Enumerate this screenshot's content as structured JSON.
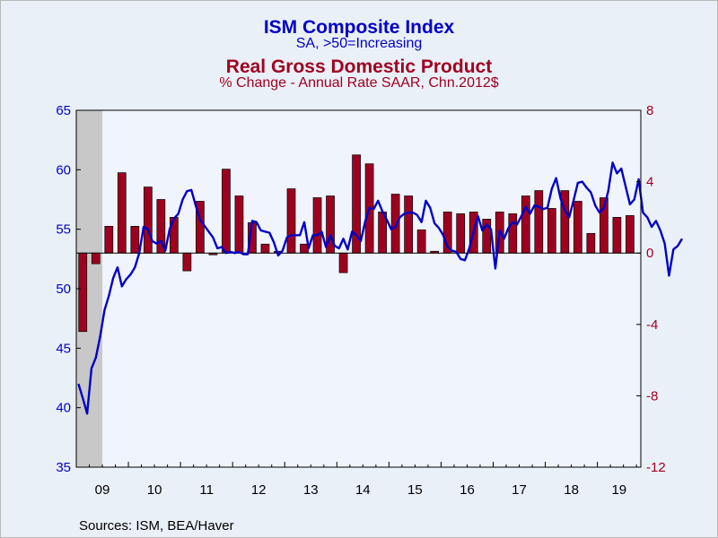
{
  "titles": {
    "title1": "ISM Composite Index",
    "subtitle1": "SA, >50=Increasing",
    "title2": "Real Gross Domestic Product",
    "subtitle2": "% Change - Annual Rate     SAAR, Chn.2012$"
  },
  "source": "Sources:  ISM, BEA/Haver",
  "colors": {
    "ism_line": "#0000c8",
    "gdp_bars": "#a00020",
    "recession": "#c8c8c8",
    "plot_bg": "#f0f4fc"
  },
  "chart_data": {
    "type": "bar+line",
    "left_axis": {
      "min": 35,
      "max": 65,
      "ticks": [
        35,
        40,
        45,
        50,
        55,
        60,
        65
      ],
      "color": "#0000c8"
    },
    "right_axis": {
      "min": -12,
      "max": 8,
      "ticks": [
        -12,
        -8,
        -4,
        0,
        4,
        8
      ],
      "color": "#a00020"
    },
    "x_axis": {
      "start": "2009-01",
      "end": "2019-10",
      "year_labels": [
        "09",
        "10",
        "11",
        "12",
        "13",
        "14",
        "15",
        "16",
        "17",
        "18",
        "19"
      ]
    },
    "recession_shading": {
      "start": "2009-01",
      "end": "2009-06"
    },
    "series": [
      {
        "name": "Real GDP % change, annual rate (quarterly, right axis)",
        "kind": "bar",
        "axis": "right",
        "start": "2009Q1",
        "values": [
          -4.4,
          -0.6,
          1.5,
          4.5,
          1.5,
          3.7,
          3.0,
          2.0,
          -1.0,
          2.9,
          -0.1,
          4.7,
          3.2,
          1.7,
          0.5,
          0.1,
          3.6,
          0.5,
          3.1,
          3.2,
          -1.1,
          5.5,
          5.0,
          2.3,
          3.3,
          3.2,
          1.3,
          0.1,
          2.3,
          2.2,
          2.3,
          1.9,
          2.3,
          2.2,
          3.2,
          3.5,
          2.5,
          3.5,
          2.9,
          1.1,
          3.1,
          2.0,
          2.1
        ]
      },
      {
        "name": "ISM Composite Index (monthly, left axis)",
        "kind": "line",
        "axis": "left",
        "start": "2009-01",
        "values": [
          42.0,
          40.8,
          39.5,
          43.3,
          44.2,
          46.0,
          48.2,
          49.4,
          50.9,
          51.8,
          50.2,
          50.8,
          51.2,
          51.8,
          53.0,
          55.2,
          55.0,
          54.0,
          53.8,
          54.0,
          53.2,
          55.0,
          55.9,
          56.3,
          57.5,
          58.2,
          58.3,
          57.0,
          55.8,
          55.3,
          54.8,
          54.3,
          53.4,
          53.5,
          53.0,
          53.1,
          53.0,
          53.1,
          52.9,
          52.9,
          55.7,
          55.6,
          54.9,
          54.8,
          54.7,
          53.9,
          52.8,
          53.2,
          54.3,
          54.5,
          54.5,
          54.5,
          55.6,
          53.4,
          54.5,
          54.5,
          54.8,
          53.5,
          54.5,
          53.6,
          53.4,
          54.2,
          53.3,
          54.8,
          54.5,
          54.0,
          55.6,
          56.8,
          56.7,
          57.4,
          56.5,
          55.8,
          55.0,
          55.2,
          56.0,
          56.3,
          56.4,
          56.4,
          56.2,
          55.6,
          57.4,
          56.8,
          55.5,
          55.1,
          54.5,
          53.5,
          53.2,
          53.1,
          52.5,
          52.4,
          53.4,
          54.8,
          56.1,
          54.9,
          55.4,
          55.0,
          51.7,
          54.9,
          54.2,
          55.1,
          55.6,
          55.4,
          56.1,
          56.9,
          56.3,
          57.0,
          56.9,
          56.7,
          56.8,
          58.4,
          59.3,
          57.6,
          56.6,
          56.0,
          57.4,
          58.9,
          59.0,
          58.5,
          58.1,
          57.0,
          56.4,
          56.8,
          58.2,
          60.6,
          59.7,
          60.1,
          58.6,
          57.1,
          57.5,
          59.2,
          56.4,
          56.0,
          55.2,
          55.7,
          54.9,
          53.8,
          51.1,
          53.3,
          53.6,
          54.2
        ]
      }
    ]
  }
}
